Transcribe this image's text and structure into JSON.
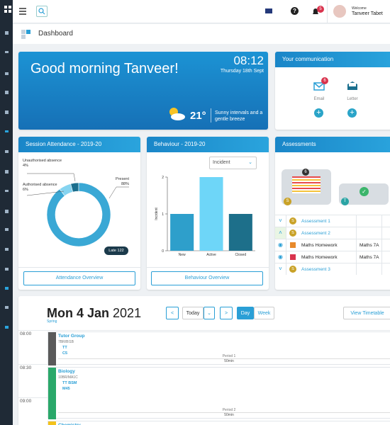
{
  "header": {
    "welcome": "Welcome",
    "user_name": "Tanveer Tabet",
    "notifications": "5"
  },
  "page_title": "Dashboard",
  "greeting": {
    "message": "Good morning Tanveer!",
    "time": "08:12",
    "date": "Thursday 18th Sept",
    "temperature": "21°",
    "weather": "Sunny intervals and a gentle breeze"
  },
  "communication": {
    "title": "Your communication",
    "email_label": "Email",
    "email_count": "6",
    "letter_label": "Letter"
  },
  "chart_data": [
    {
      "type": "pie",
      "title": "Session Attendance - 2019-20",
      "categories": [
        "Unauthorised absence",
        "Authorised absence",
        "Present"
      ],
      "values": [
        4,
        6,
        88
      ],
      "value_labels": [
        "4%",
        "6%",
        "88%"
      ],
      "colors": [
        "#1b6f8e",
        "#86d4f0",
        "#3aa8d5"
      ],
      "annotations": [
        "Late 122"
      ]
    },
    {
      "type": "bar",
      "title": "Behaviour - 2019-20",
      "filter": "Incident",
      "y_label": "Incident",
      "categories": [
        "New",
        "Active",
        "Closed"
      ],
      "values": [
        1,
        2,
        1
      ],
      "colors": [
        "#2e9fcb",
        "#6ed6f8",
        "#1d6f8a"
      ],
      "ylim": [
        0,
        2
      ],
      "yticks": [
        0,
        1,
        2
      ]
    }
  ],
  "buttons": {
    "attendance": "Attendance Overview",
    "behaviour": "Behaviour Overview"
  },
  "assessments": {
    "title": "Assessments",
    "pending_count": "6",
    "badges": [
      "S",
      "T"
    ],
    "rows": [
      {
        "badge": "S",
        "name": "Assessment 1"
      },
      {
        "badge": "S",
        "name": "Assessment 2"
      },
      {
        "name": "Maths Homework",
        "class": "Maths 7A"
      },
      {
        "name": "Maths Homework",
        "class": "Maths 7A"
      },
      {
        "badge": "S",
        "name": "Assessment 3"
      }
    ]
  },
  "calendar": {
    "date": "Mon 4 Jan",
    "year": "2021",
    "term": "Spring",
    "today": "Today",
    "day": "Day",
    "week": "Week",
    "view": "View Timetable",
    "times": [
      "08:00",
      "08:30",
      "09:00"
    ],
    "events": [
      {
        "title": "Tutor Group",
        "code": "7BR/BI1B",
        "teacher": "TT",
        "room": "C5",
        "period": "Period 1",
        "duration": "50min",
        "color": "#5a5a5a"
      },
      {
        "title": "Biology",
        "code": "10BR/MA1C",
        "teacher": "TT BSM",
        "room": "M45",
        "period": "Period 2",
        "duration": "50min",
        "color": "#2aa86a"
      },
      {
        "title": "Chemistry",
        "color": "#f3c21b"
      }
    ]
  }
}
